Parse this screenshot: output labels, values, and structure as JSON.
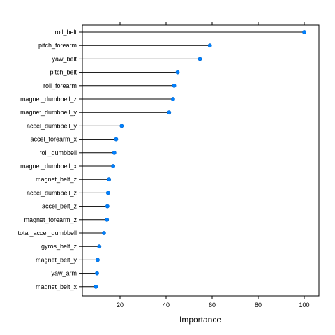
{
  "chart_data": {
    "type": "dotplot",
    "xlabel": "Importance",
    "xlim": [
      0,
      107
    ],
    "xticks": [
      20,
      40,
      60,
      80,
      100
    ],
    "grid": false,
    "legend": "none",
    "point_color": "#0080FF",
    "categories": [
      "roll_belt",
      "pitch_forearm",
      "yaw_belt",
      "pitch_belt",
      "roll_forearm",
      "magnet_dumbbell_z",
      "magnet_dumbbell_y",
      "accel_dumbbell_y",
      "accel_forearm_x",
      "roll_dumbbell",
      "magnet_dumbbell_x",
      "magnet_belt_z",
      "accel_dumbbell_z",
      "accel_belt_z",
      "magnet_forearm_z",
      "total_accel_dumbbell",
      "gyros_belt_z",
      "magnet_belt_y",
      "yaw_arm",
      "magnet_belt_x"
    ],
    "values": [
      100,
      59,
      54.7,
      45,
      43.5,
      43,
      41.3,
      20.7,
      18.3,
      17.5,
      17,
      15.2,
      14.8,
      14.5,
      14.3,
      13,
      11,
      10.3,
      10,
      9.5
    ]
  }
}
